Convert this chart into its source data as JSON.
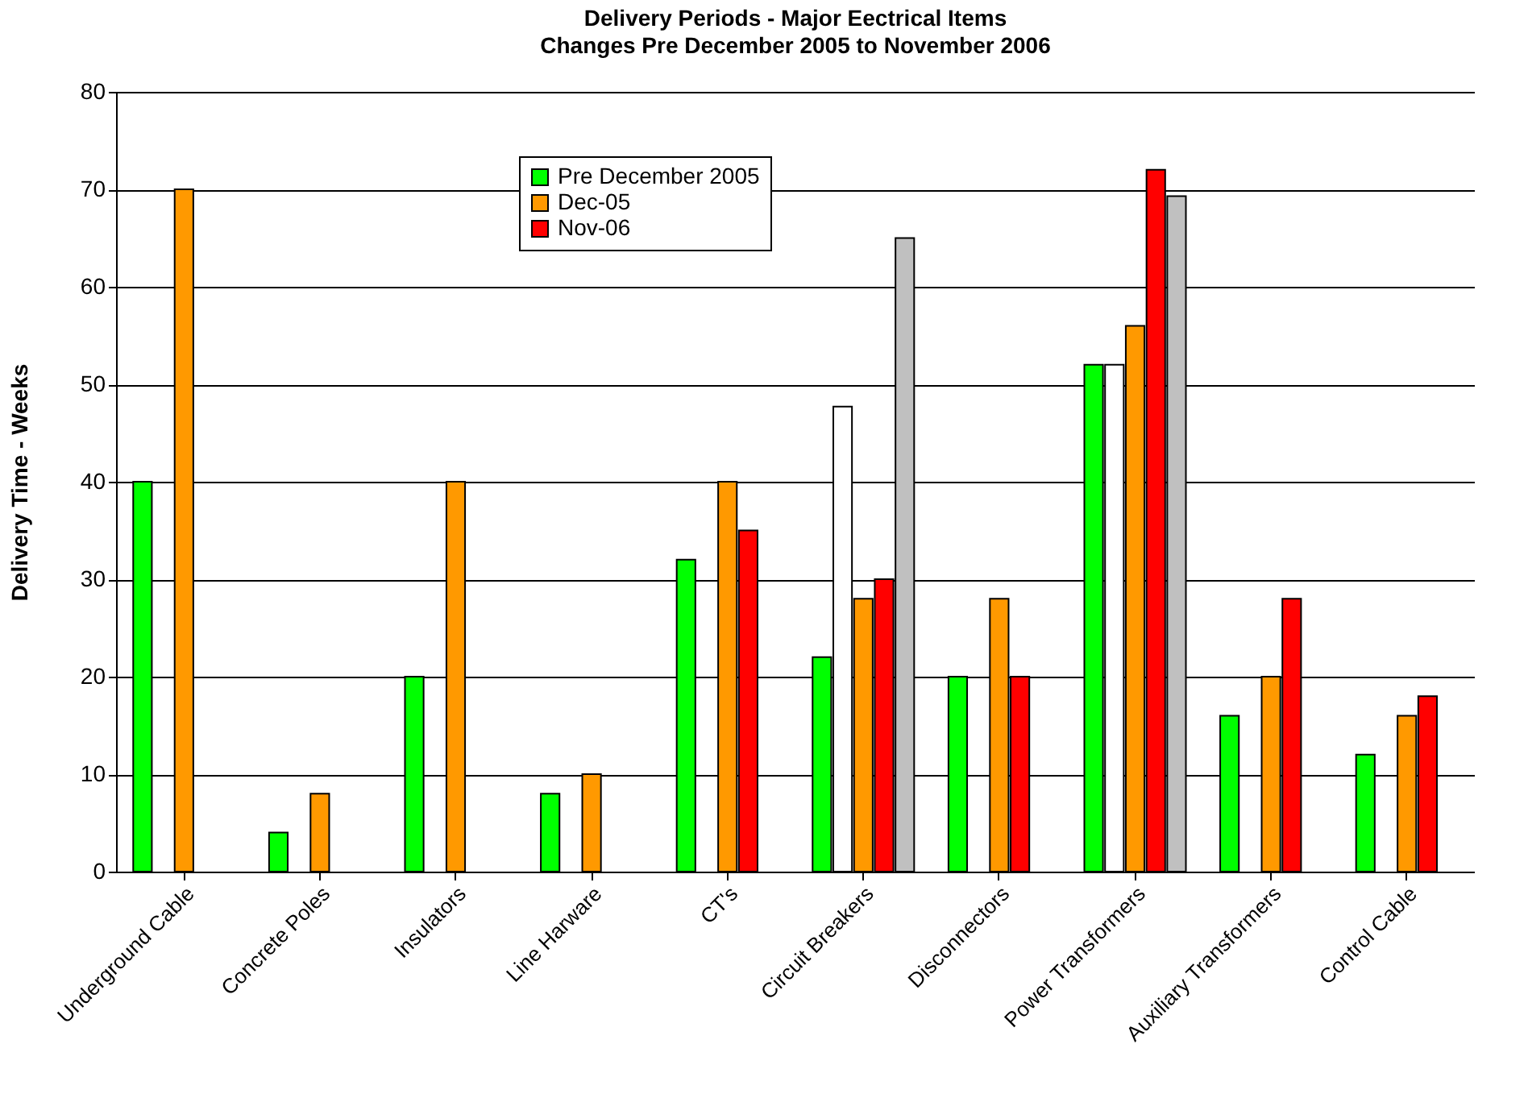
{
  "chart_data": {
    "type": "bar",
    "title": "Delivery Periods - Major Eectrical Items",
    "subtitle": "Changes Pre December 2005 to November 2006",
    "ylabel": "Delivery Time - Weeks",
    "categories": [
      "Underground Cable",
      "Concrete Poles",
      "Insulators",
      "Line Harware",
      "CT's",
      "Circuit Breakers",
      "Disconnectors",
      "Power Transformers",
      "Auxiliary Transformers",
      "Control Cable"
    ],
    "series": [
      {
        "name": "Pre December 2005",
        "color": "#00ff00",
        "values": [
          40,
          4,
          20,
          8,
          32,
          22,
          20,
          52,
          16,
          12
        ]
      },
      {
        "color": "#ffffff",
        "values": [
          null,
          null,
          null,
          null,
          null,
          47.7,
          null,
          52,
          null,
          null
        ]
      },
      {
        "name": "Dec-05",
        "color": "#ff9900",
        "values": [
          70,
          8,
          40,
          10,
          40,
          28,
          28,
          56,
          20,
          16
        ]
      },
      {
        "name": "Nov-06",
        "color": "#ff0000",
        "values": [
          null,
          null,
          null,
          null,
          35,
          30,
          20,
          72,
          28,
          18
        ]
      },
      {
        "color": "#c0c0c0",
        "values": [
          null,
          null,
          null,
          null,
          null,
          65,
          null,
          69.3,
          null,
          null
        ]
      }
    ],
    "ylim": [
      0,
      80
    ],
    "yticks": [
      0,
      10,
      20,
      30,
      40,
      50,
      60,
      70,
      80
    ],
    "grid": "y",
    "legend": "top"
  }
}
